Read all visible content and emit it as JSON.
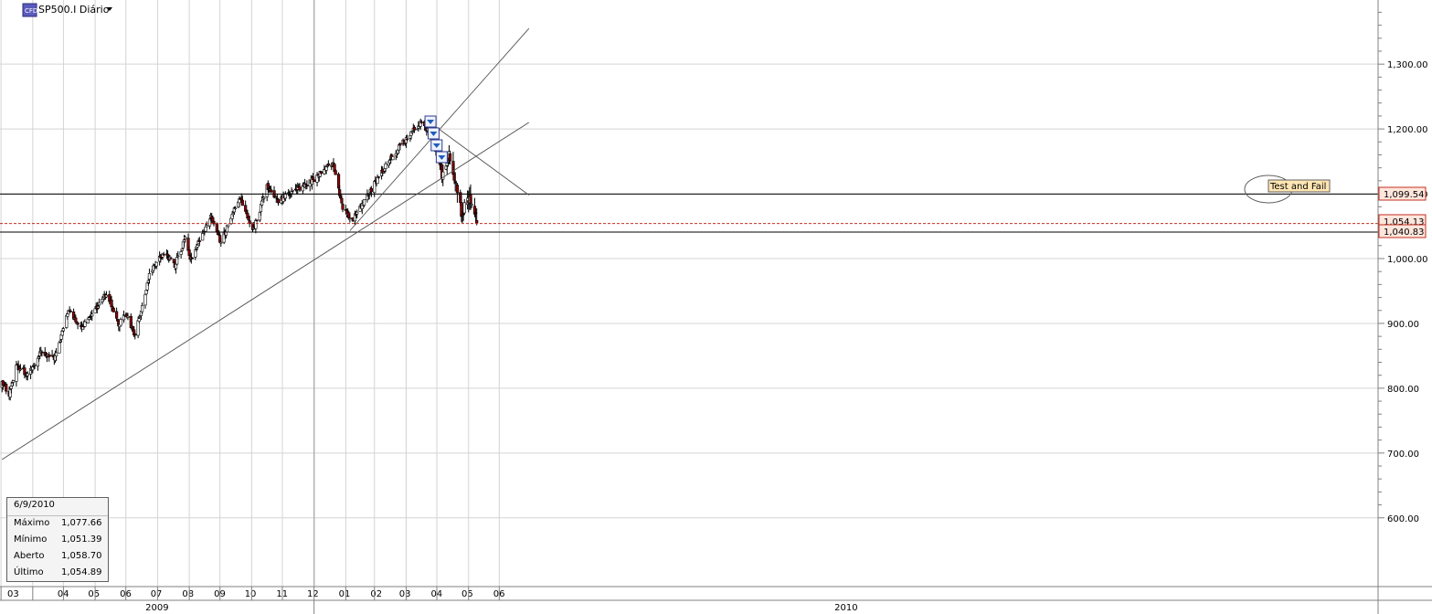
{
  "header": {
    "symbol_label": "SP500.I Diário",
    "badge_text": "CFD"
  },
  "info_box": {
    "date": "6/9/2010",
    "rows": [
      {
        "label": "Máximo",
        "value": "1,077.66"
      },
      {
        "label": "Mínimo",
        "value": "1,051.39"
      },
      {
        "label": "Aberto",
        "value": "1,058.70"
      },
      {
        "label": "Último",
        "value": "1,054.89"
      }
    ]
  },
  "price_labels": {
    "resistance": "1,099.54",
    "current": "1,054.13",
    "support": "1,040.83"
  },
  "annotation": {
    "text": "Test and Fail"
  },
  "colors": {
    "up_candle": "#ffffff",
    "down_candle": "#8b0000",
    "grid": "#d4d4d4",
    "price_box_bg": "#ffe6dc",
    "price_box_border": "#c03020",
    "annotation_bg": "#ffe6b3"
  },
  "chart_data": {
    "type": "candlestick",
    "title": "SP500.I Diário",
    "y_axis": {
      "ticks": [
        "600.00",
        "700.00",
        "800.00",
        "900.00",
        "1,000.00",
        "1,100.00",
        "1,200.00",
        "1,300.00"
      ],
      "ylim": [
        535,
        1420
      ]
    },
    "x_axis": {
      "months": [
        "03",
        "04",
        "05",
        "06",
        "07",
        "08",
        "09",
        "10",
        "11",
        "12",
        "01",
        "02",
        "03",
        "04",
        "05",
        "06"
      ],
      "years": [
        "2009",
        "2010"
      ]
    },
    "path": [
      {
        "date": "2009-03-02",
        "close": 810
      },
      {
        "date": "2009-03-09",
        "close": 790
      },
      {
        "date": "2009-03-16",
        "close": 835
      },
      {
        "date": "2009-03-27",
        "close": 820
      },
      {
        "date": "2009-04-09",
        "close": 858
      },
      {
        "date": "2009-04-22",
        "close": 845
      },
      {
        "date": "2009-05-06",
        "close": 920
      },
      {
        "date": "2009-05-19",
        "close": 895
      },
      {
        "date": "2009-05-28",
        "close": 910
      },
      {
        "date": "2009-06-12",
        "close": 945
      },
      {
        "date": "2009-06-24",
        "close": 900
      },
      {
        "date": "2009-07-02",
        "close": 915
      },
      {
        "date": "2009-07-10",
        "close": 880
      },
      {
        "date": "2009-07-24",
        "close": 975
      },
      {
        "date": "2009-08-07",
        "close": 1010
      },
      {
        "date": "2009-08-18",
        "close": 990
      },
      {
        "date": "2009-08-28",
        "close": 1030
      },
      {
        "date": "2009-09-02",
        "close": 995
      },
      {
        "date": "2009-09-22",
        "close": 1065
      },
      {
        "date": "2009-10-02",
        "close": 1025
      },
      {
        "date": "2009-10-20",
        "close": 1095
      },
      {
        "date": "2009-11-02",
        "close": 1040
      },
      {
        "date": "2009-11-16",
        "close": 1110
      },
      {
        "date": "2009-11-27",
        "close": 1090
      },
      {
        "date": "2009-12-14",
        "close": 1105
      },
      {
        "date": "2009-12-30",
        "close": 1120
      },
      {
        "date": "2010-01-19",
        "close": 1150
      },
      {
        "date": "2010-01-29",
        "close": 1075
      },
      {
        "date": "2010-02-08",
        "close": 1060
      },
      {
        "date": "2010-02-25",
        "close": 1105
      },
      {
        "date": "2010-03-19",
        "close": 1160
      },
      {
        "date": "2010-04-15",
        "close": 1210
      },
      {
        "date": "2010-04-28",
        "close": 1185
      },
      {
        "date": "2010-05-06",
        "close": 1130
      },
      {
        "date": "2010-05-13",
        "close": 1160
      },
      {
        "date": "2010-05-25",
        "close": 1070
      },
      {
        "date": "2010-06-02",
        "close": 1095
      },
      {
        "date": "2010-06-09",
        "close": 1055
      }
    ],
    "last_bar": {
      "date": "2010-06-09",
      "open": 1058.7,
      "high": 1077.66,
      "low": 1051.39,
      "close": 1054.89
    },
    "horizontal_lines": [
      1099.54,
      1054.13,
      1040.83
    ],
    "trendlines": [
      {
        "from": {
          "date": "2009-03-02",
          "price": 690
        },
        "to": {
          "date": "2010-07-30",
          "price": 1210
        }
      },
      {
        "from": {
          "date": "2010-02-05",
          "price": 1043
        },
        "to": {
          "date": "2010-07-30",
          "price": 1355
        }
      },
      {
        "from": {
          "date": "2010-04-20",
          "price": 1215
        },
        "to": {
          "date": "2010-07-30",
          "price": 1098
        }
      }
    ],
    "annotations": [
      {
        "text": "Test and Fail",
        "date": "2010-06-03",
        "price": 1105
      }
    ],
    "grid": true
  }
}
